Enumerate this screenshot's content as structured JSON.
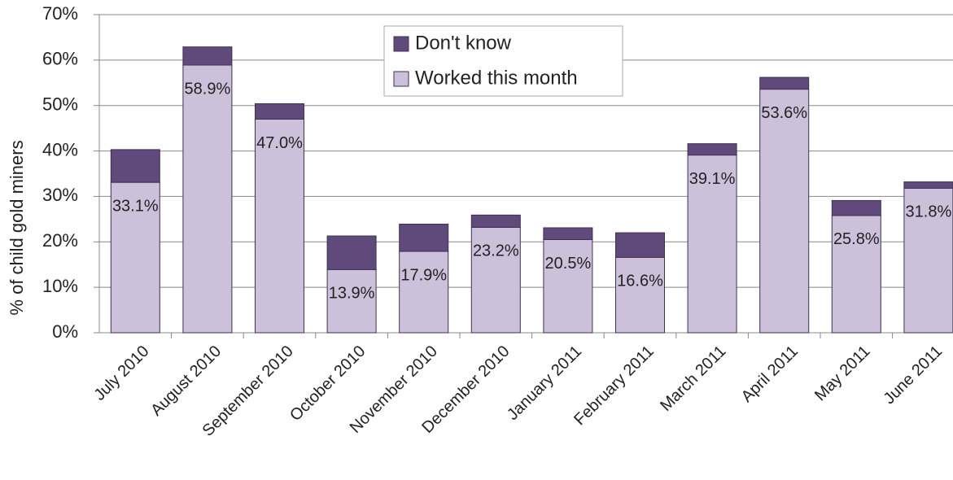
{
  "chart_data": {
    "type": "stacked_bar",
    "y_label": "% of child gold miners",
    "categories": [
      "July 2010",
      "August 2010",
      "September 2010",
      "October 2010",
      "November 2010",
      "December 2010",
      "January 2011",
      "February 2011",
      "March 2011",
      "April 2011",
      "May 2011",
      "June 2011"
    ],
    "series": [
      {
        "name": "Worked this month",
        "color": "#ccc0da",
        "values": [
          33.1,
          58.9,
          47.0,
          13.9,
          17.9,
          23.2,
          20.5,
          16.6,
          39.1,
          53.6,
          25.8,
          31.8
        ],
        "value_labels": [
          "33.1%",
          "58.9%",
          "47.0%",
          "13.9%",
          "17.9%",
          "23.2%",
          "20.5%",
          "16.6%",
          "39.1%",
          "53.6%",
          "25.8%",
          "31.8%"
        ]
      },
      {
        "name": "Don't know",
        "color": "#604a7b",
        "values": [
          7.2,
          4.0,
          3.4,
          7.4,
          6.0,
          2.7,
          2.6,
          5.4,
          2.5,
          2.6,
          3.3,
          1.4
        ]
      }
    ],
    "ylim": [
      0,
      70
    ],
    "yticks": [
      {
        "value": 0,
        "label": "0%"
      },
      {
        "value": 10,
        "label": "10%"
      },
      {
        "value": 20,
        "label": "20%"
      },
      {
        "value": 30,
        "label": "30%"
      },
      {
        "value": 40,
        "label": "40%"
      },
      {
        "value": 50,
        "label": "50%"
      },
      {
        "value": 60,
        "label": "60%"
      },
      {
        "value": 70,
        "label": "70%"
      }
    ],
    "grid": true,
    "legend": "top"
  }
}
